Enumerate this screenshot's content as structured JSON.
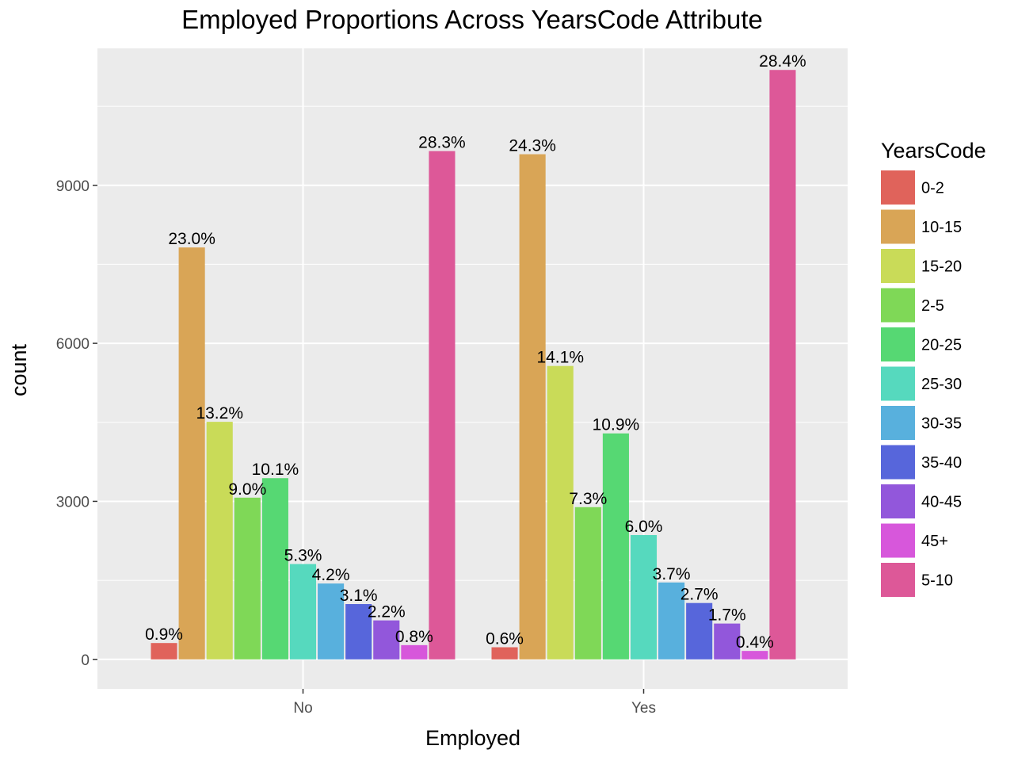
{
  "chart_data": {
    "type": "bar",
    "title": "Employed Proportions Across YearsCode Attribute",
    "xlabel": "Employed",
    "ylabel": "count",
    "categories": [
      "No",
      "Yes"
    ],
    "yticks": [
      "0",
      "3000",
      "6000",
      "9000"
    ],
    "ylim": [
      -560,
      11600
    ],
    "grid": true,
    "legend_title": "YearsCode",
    "legend_position": "right",
    "series": [
      {
        "name": "0-2",
        "color": "#E0635B",
        "values": [
          310,
          230
        ],
        "labels": [
          "0.9%",
          "0.6%"
        ]
      },
      {
        "name": "10-15",
        "color": "#D9A556",
        "values": [
          7820,
          9590
        ],
        "labels": [
          "23.0%",
          "24.3%"
        ]
      },
      {
        "name": "15-20",
        "color": "#C9DB58",
        "values": [
          4510,
          5570
        ],
        "labels": [
          "13.2%",
          "14.1%"
        ]
      },
      {
        "name": "2-5",
        "color": "#7FD857",
        "values": [
          3070,
          2890
        ],
        "labels": [
          "9.0%",
          "7.3%"
        ]
      },
      {
        "name": "20-25",
        "color": "#56D873",
        "values": [
          3440,
          4290
        ],
        "labels": [
          "10.1%",
          "10.9%"
        ]
      },
      {
        "name": "25-30",
        "color": "#56D9BE",
        "values": [
          1810,
          2360
        ],
        "labels": [
          "5.3%",
          "6.0%"
        ]
      },
      {
        "name": "30-35",
        "color": "#58B0DD",
        "values": [
          1440,
          1460
        ],
        "labels": [
          "4.2%",
          "3.7%"
        ]
      },
      {
        "name": "35-40",
        "color": "#5766DB",
        "values": [
          1050,
          1070
        ],
        "labels": [
          "3.1%",
          "2.7%"
        ]
      },
      {
        "name": "40-45",
        "color": "#9257DB",
        "values": [
          740,
          680
        ],
        "labels": [
          "2.2%",
          "1.7%"
        ]
      },
      {
        "name": "45+",
        "color": "#D757DB",
        "values": [
          270,
          160
        ],
        "labels": [
          "0.8%",
          "0.4%"
        ]
      },
      {
        "name": "5-10",
        "color": "#DD5898",
        "values": [
          9650,
          11190
        ],
        "labels": [
          "28.3%",
          "28.4%"
        ]
      }
    ]
  }
}
